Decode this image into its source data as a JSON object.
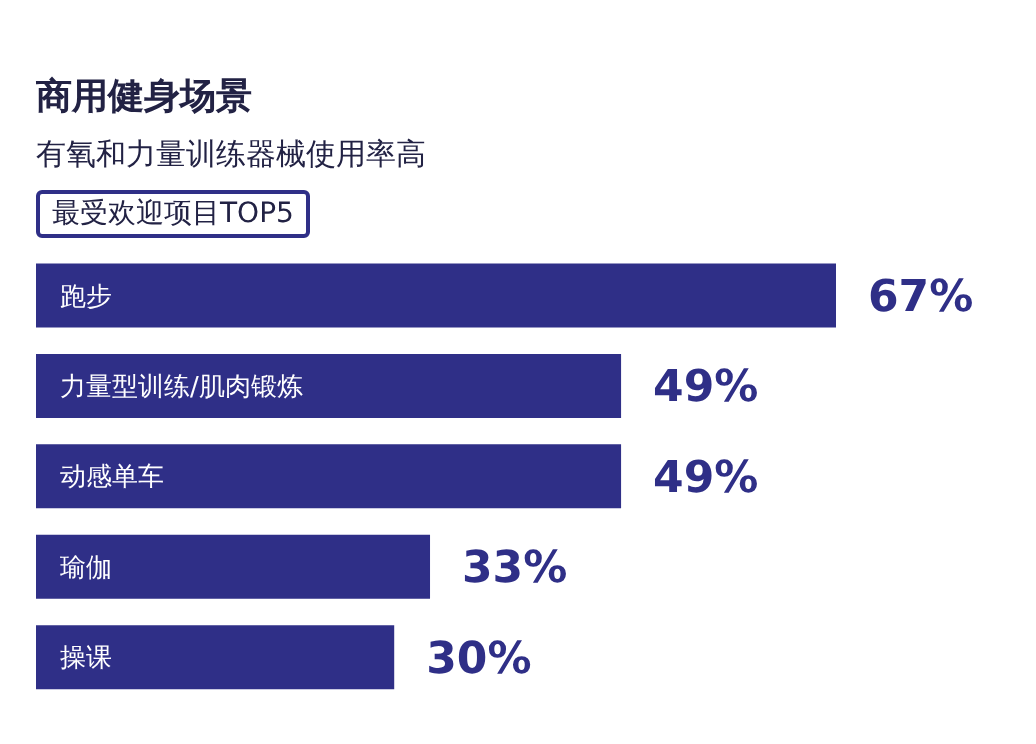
{
  "chart_data": {
    "type": "bar",
    "orientation": "horizontal",
    "title": "商用健身场景",
    "subtitle": "有氧和力量训练器械使用率高",
    "annotations": [
      "最受欢迎项目TOP5"
    ],
    "categories": [
      "跑步",
      "力量型训练/肌肉锻炼",
      "动感单车",
      "瑜伽",
      "操课"
    ],
    "values": [
      67,
      49,
      49,
      33,
      30
    ],
    "color": "#2f2f87",
    "value_labels": [
      "67%",
      "49%",
      "49%",
      "33%",
      "30%"
    ]
  }
}
